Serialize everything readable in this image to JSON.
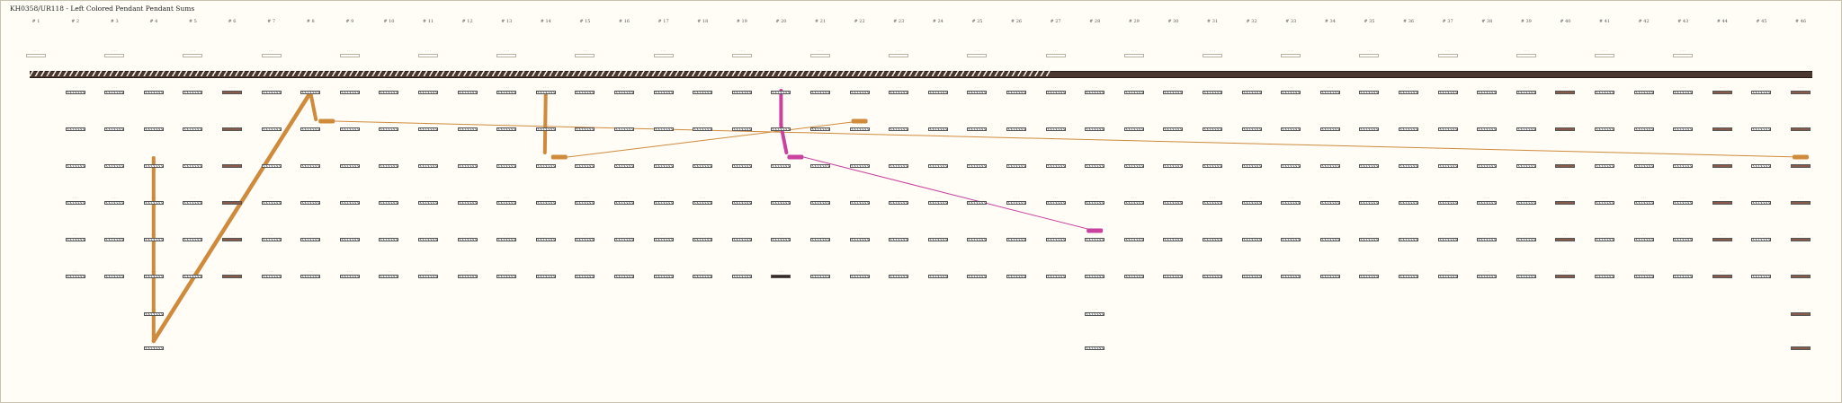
{
  "title": "KH0358/UR118 - Left Colored Pendant Pendant Sums",
  "columns": [
    "# 1",
    "# 2",
    "# 3",
    "# 4",
    "# 5",
    "# 6",
    "# 7",
    "# 8",
    "# 9",
    "# 10",
    "# 11",
    "# 12",
    "# 13",
    "# 14",
    "# 15",
    "# 16",
    "# 17",
    "# 18",
    "# 19",
    "# 20",
    "# 21",
    "# 22",
    "# 23",
    "# 24",
    "# 25",
    "# 26",
    "# 27",
    "# 28",
    "# 29",
    "# 30",
    "# 31",
    "# 32",
    "# 33",
    "# 34",
    "# 35",
    "# 36",
    "# 37",
    "# 38",
    "# 39",
    "# 40",
    "# 41",
    "# 42",
    "# 43",
    "# 44",
    "# 45",
    "# 46"
  ],
  "colors": {
    "background": "#fffdf6",
    "primary_cord": "#4a3730",
    "sum_link_orange": "#d08a3c",
    "sum_link_magenta": "#c9439e",
    "text": "#222222"
  }
}
